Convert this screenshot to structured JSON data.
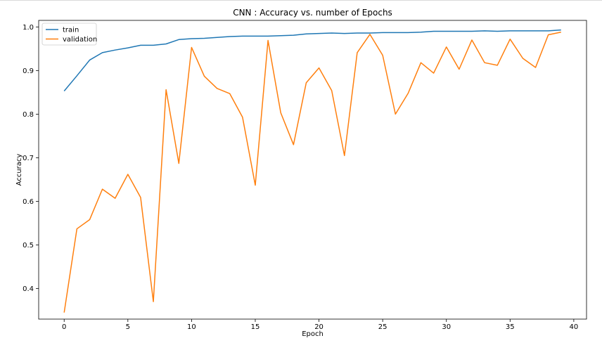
{
  "chart_data": {
    "type": "line",
    "title": "CNN : Accuracy vs. number of Epochs",
    "xlabel": "Epoch",
    "ylabel": "Accuracy",
    "xlim": [
      -2,
      41
    ],
    "ylim": [
      0.33,
      1.015
    ],
    "xticks": [
      0,
      5,
      10,
      15,
      20,
      25,
      30,
      35,
      40
    ],
    "yticks": [
      0.4,
      0.5,
      0.6,
      0.7,
      0.8,
      0.9,
      1.0
    ],
    "xtick_labels": [
      "0",
      "5",
      "10",
      "15",
      "20",
      "25",
      "30",
      "35",
      "40"
    ],
    "ytick_labels": [
      "0.4",
      "0.5",
      "0.6",
      "0.7",
      "0.8",
      "0.9",
      "1.0"
    ],
    "grid": false,
    "legend": "top-left",
    "x": [
      0,
      1,
      2,
      3,
      4,
      5,
      6,
      7,
      8,
      9,
      10,
      11,
      12,
      13,
      14,
      15,
      16,
      17,
      18,
      19,
      20,
      21,
      22,
      23,
      24,
      25,
      26,
      27,
      28,
      29,
      30,
      31,
      32,
      33,
      34,
      35,
      36,
      37,
      38,
      39
    ],
    "series": [
      {
        "name": "train",
        "color": "#1f77b4",
        "values": [
          0.853,
          0.888,
          0.924,
          0.941,
          0.947,
          0.952,
          0.958,
          0.958,
          0.961,
          0.971,
          0.973,
          0.974,
          0.976,
          0.978,
          0.979,
          0.979,
          0.979,
          0.98,
          0.981,
          0.984,
          0.985,
          0.986,
          0.985,
          0.986,
          0.986,
          0.987,
          0.987,
          0.987,
          0.988,
          0.99,
          0.99,
          0.99,
          0.99,
          0.991,
          0.99,
          0.991,
          0.991,
          0.991,
          0.991,
          0.993
        ]
      },
      {
        "name": "validation",
        "color": "#ff7f0e",
        "values": [
          0.345,
          0.537,
          0.558,
          0.628,
          0.607,
          0.662,
          0.609,
          0.37,
          0.856,
          0.687,
          0.953,
          0.887,
          0.859,
          0.847,
          0.793,
          0.637,
          0.969,
          0.803,
          0.73,
          0.872,
          0.906,
          0.854,
          0.705,
          0.941,
          0.983,
          0.935,
          0.8,
          0.848,
          0.918,
          0.894,
          0.954,
          0.903,
          0.97,
          0.918,
          0.912,
          0.972,
          0.928,
          0.907,
          0.982,
          0.988
        ]
      }
    ]
  }
}
